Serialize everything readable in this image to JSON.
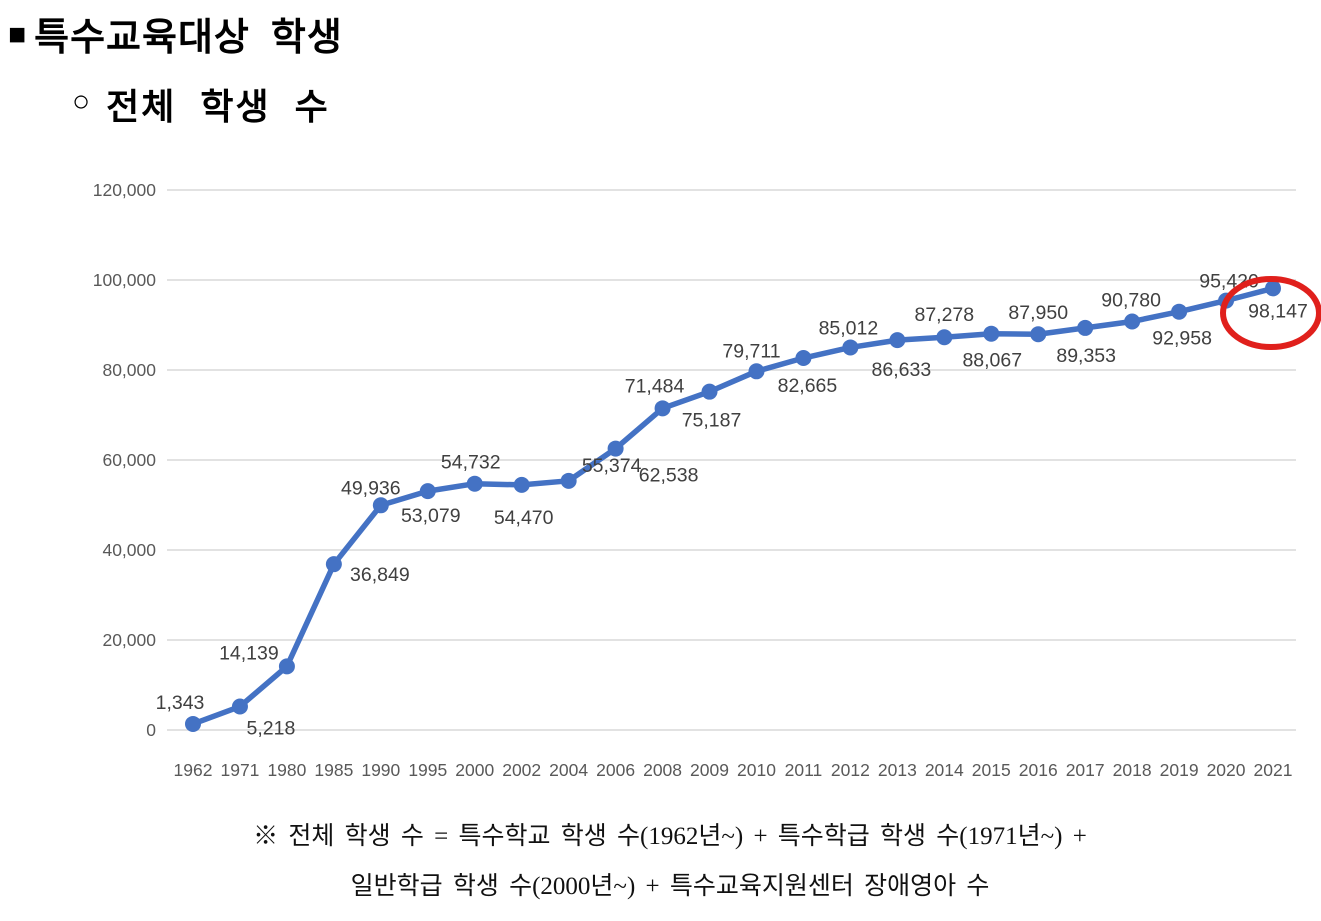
{
  "page": {
    "title_bullet": "■",
    "title": "특수교육대상  학생",
    "subtitle_bullet": "○",
    "subtitle": "전체  학생  수",
    "footnote_line1": "※  전체  학생  수 = 특수학교  학생  수(1962년~) + 특수학급  학생  수(1971년~) +",
    "footnote_line2": "일반학급  학생  수(2000년~) + 특수교육지원센터  장애영아  수"
  },
  "chart_data": {
    "type": "line",
    "title": "전체 학생 수",
    "categories": [
      "1962",
      "1971",
      "1980",
      "1985",
      "1990",
      "1995",
      "2000",
      "2002",
      "2004",
      "2006",
      "2008",
      "2009",
      "2010",
      "2011",
      "2012",
      "2013",
      "2014",
      "2015",
      "2016",
      "2017",
      "2018",
      "2019",
      "2020",
      "2021"
    ],
    "values": [
      1343,
      5218,
      14139,
      36849,
      49936,
      53079,
      54732,
      54470,
      55374,
      62538,
      71484,
      75187,
      79711,
      82665,
      85012,
      86633,
      87278,
      88067,
      87950,
      89353,
      90780,
      92958,
      95420,
      98147
    ],
    "data_labels": [
      "1,343",
      "5,218",
      "14,139",
      "36,849",
      "49,936",
      "53,079",
      "54,732",
      "54,470",
      "55,374",
      "62,538",
      "71,484",
      "75,187",
      "79,711",
      "82,665",
      "85,012",
      "86,633",
      "87,278",
      "88,067",
      "87,950",
      "89,353",
      "90,780",
      "92,958",
      "95,420",
      "98,147"
    ],
    "ylim": [
      0,
      120000
    ],
    "ytick_step": 20000,
    "ytick_labels": [
      "0",
      "20,000",
      "40,000",
      "60,000",
      "80,000",
      "100,000",
      "120,000"
    ],
    "xlabel": "",
    "ylabel": "",
    "grid": true,
    "legend_position": "none",
    "line_color": "#4472C4",
    "marker_color": "#4472C4",
    "grid_color": "#D9D9D9",
    "data_label_color": "#404040",
    "axis_tick_color": "#595959",
    "annotation": {
      "shape": "ellipse",
      "target_category": "2021",
      "target_label": "98,147",
      "color": "#E0201C"
    }
  }
}
